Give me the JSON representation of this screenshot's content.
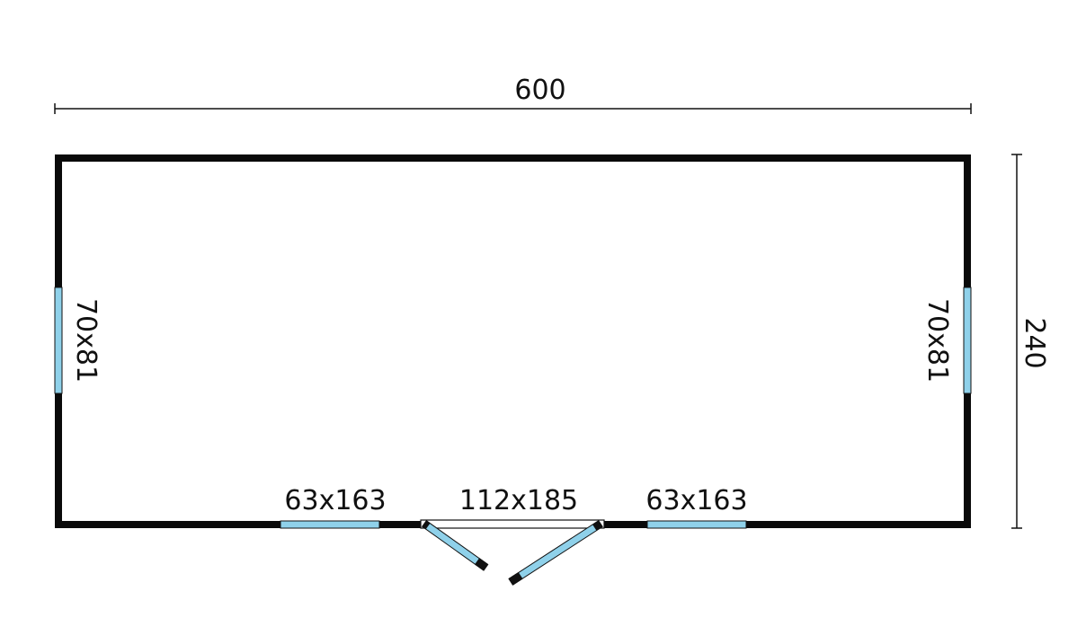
{
  "plan": {
    "width_label": "600",
    "depth_label": "240",
    "windows": {
      "left_side": "70x81",
      "right_side": "70x81",
      "front_left": "63x163",
      "front_right": "63x163"
    },
    "door": "112x185"
  },
  "colors": {
    "wall": "#0a0a0a",
    "glass": "#8fd1ea"
  }
}
